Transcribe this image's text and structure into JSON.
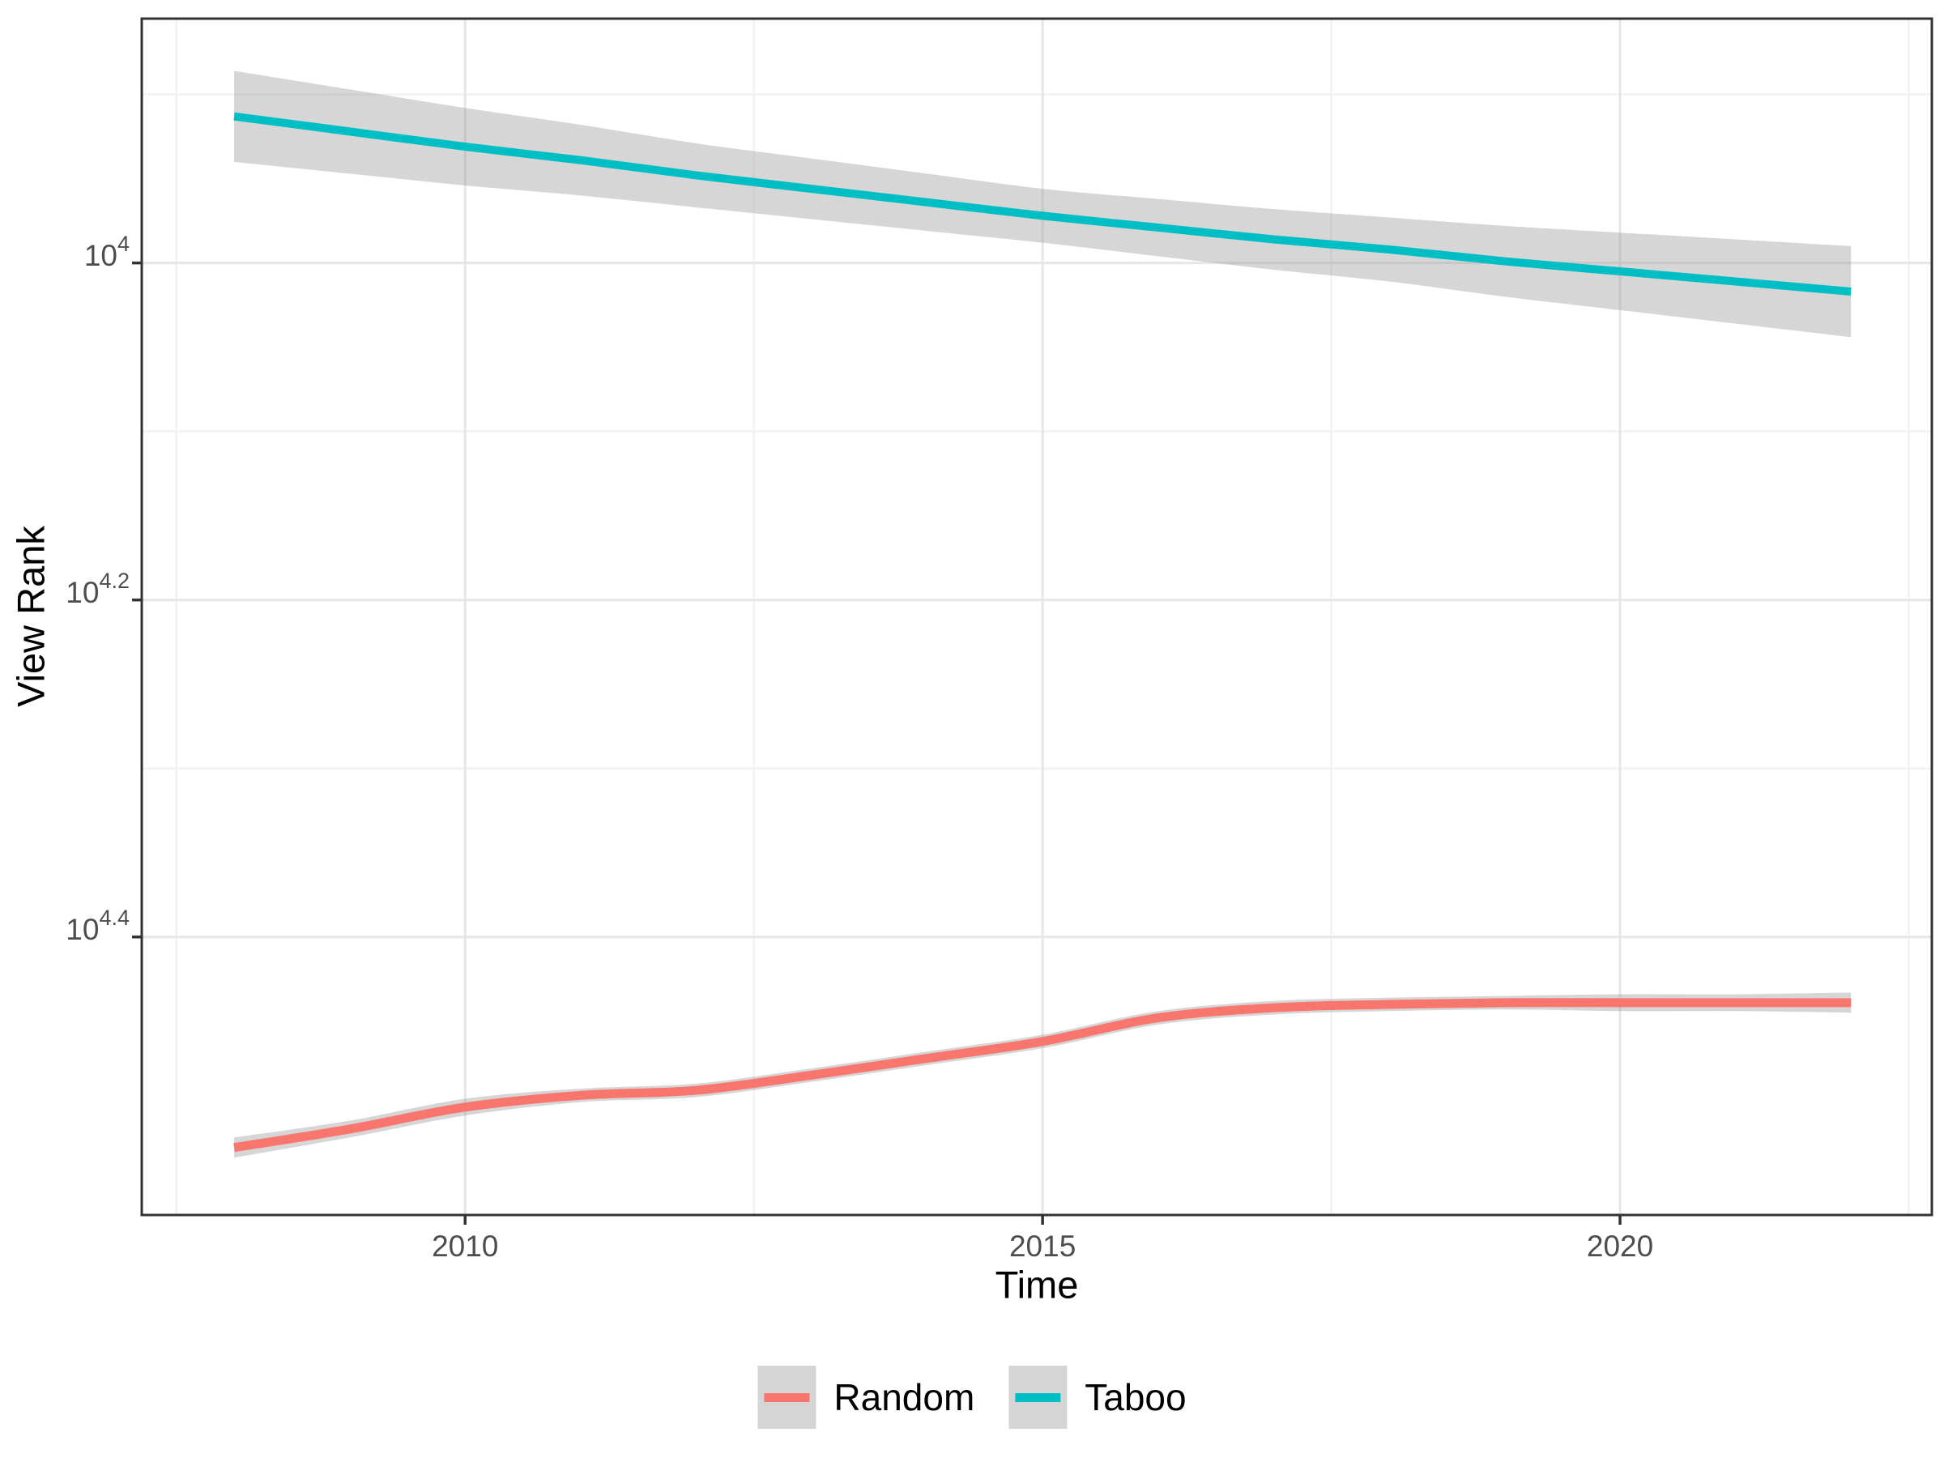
{
  "colors": {
    "background": "#FFFFFF",
    "panel_border": "#333333",
    "grid_major": "#E6E6E6",
    "grid_minor": "#F2F2F2",
    "axis_tick": "#333333",
    "tick_label_text": "#4D4D4D",
    "axis_title_text": "#000000",
    "ribbon_fill": "#999999",
    "legend_key_fill": "#D5D5D5",
    "series_random": "#F8766D",
    "series_taboo": "#00BFC4"
  },
  "legend": {
    "items": [
      {
        "label": "Random",
        "color": "#F8766D"
      },
      {
        "label": "Taboo",
        "color": "#00BFC4"
      }
    ]
  },
  "chart_data": {
    "type": "line",
    "title": "",
    "xlabel": "Time",
    "ylabel": "View Rank",
    "legend_position": "bottom",
    "grid": "on",
    "y_scale": "log10, reversed (smaller rank exponent at top)",
    "x_domain": [
      2007.2,
      2022.7
    ],
    "y_domain_top_to_bottom": [
      3.855,
      4.565
    ],
    "x_ticks": [
      {
        "value": 2010,
        "label": "2010"
      },
      {
        "value": 2015,
        "label": "2015"
      },
      {
        "value": 2020,
        "label": "2020"
      }
    ],
    "x_minor_ticks": [
      2007.5,
      2012.5,
      2017.5,
      2022.5
    ],
    "y_ticks": [
      {
        "value": 4.0,
        "base": "10",
        "exponent": "4"
      },
      {
        "value": 4.2,
        "base": "10",
        "exponent": "4.2"
      },
      {
        "value": 4.4,
        "base": "10",
        "exponent": "4.4"
      }
    ],
    "y_minor_ticks": [
      3.9,
      4.1,
      4.3
    ],
    "x": [
      2008,
      2009,
      2010,
      2011,
      2012,
      2013,
      2014,
      2015,
      2016,
      2017,
      2018,
      2019,
      2020,
      2021,
      2022
    ],
    "ribbon_opacity": 0.4,
    "series": [
      {
        "name": "Random",
        "color": "#F8766D",
        "stroke_width": 11,
        "y_log10": [
          4.525,
          4.514,
          4.501,
          4.494,
          4.491,
          4.482,
          4.472,
          4.462,
          4.448,
          4.442,
          4.44,
          4.439,
          4.439,
          4.439,
          4.439
        ],
        "ci_upper_log10": [
          4.519,
          4.509,
          4.496,
          4.49,
          4.487,
          4.478,
          4.468,
          4.458,
          4.444,
          4.438,
          4.436,
          4.435,
          4.434,
          4.434,
          4.433
        ],
        "ci_lower_log10": [
          4.531,
          4.519,
          4.506,
          4.498,
          4.495,
          4.486,
          4.476,
          4.466,
          4.452,
          4.446,
          4.444,
          4.443,
          4.444,
          4.444,
          4.445
        ]
      },
      {
        "name": "Taboo",
        "color": "#00BFC4",
        "stroke_width": 10,
        "y_log10": [
          3.913,
          3.922,
          3.931,
          3.939,
          3.948,
          3.956,
          3.964,
          3.972,
          3.979,
          3.986,
          3.992,
          3.999,
          4.005,
          4.011,
          4.017
        ],
        "ci_upper_log10": [
          3.886,
          3.897,
          3.908,
          3.918,
          3.929,
          3.938,
          3.947,
          3.956,
          3.962,
          3.968,
          3.973,
          3.978,
          3.982,
          3.986,
          3.99
        ],
        "ci_lower_log10": [
          3.94,
          3.947,
          3.954,
          3.96,
          3.967,
          3.974,
          3.981,
          3.988,
          3.996,
          4.004,
          4.011,
          4.02,
          4.028,
          4.036,
          4.044
        ]
      }
    ]
  }
}
